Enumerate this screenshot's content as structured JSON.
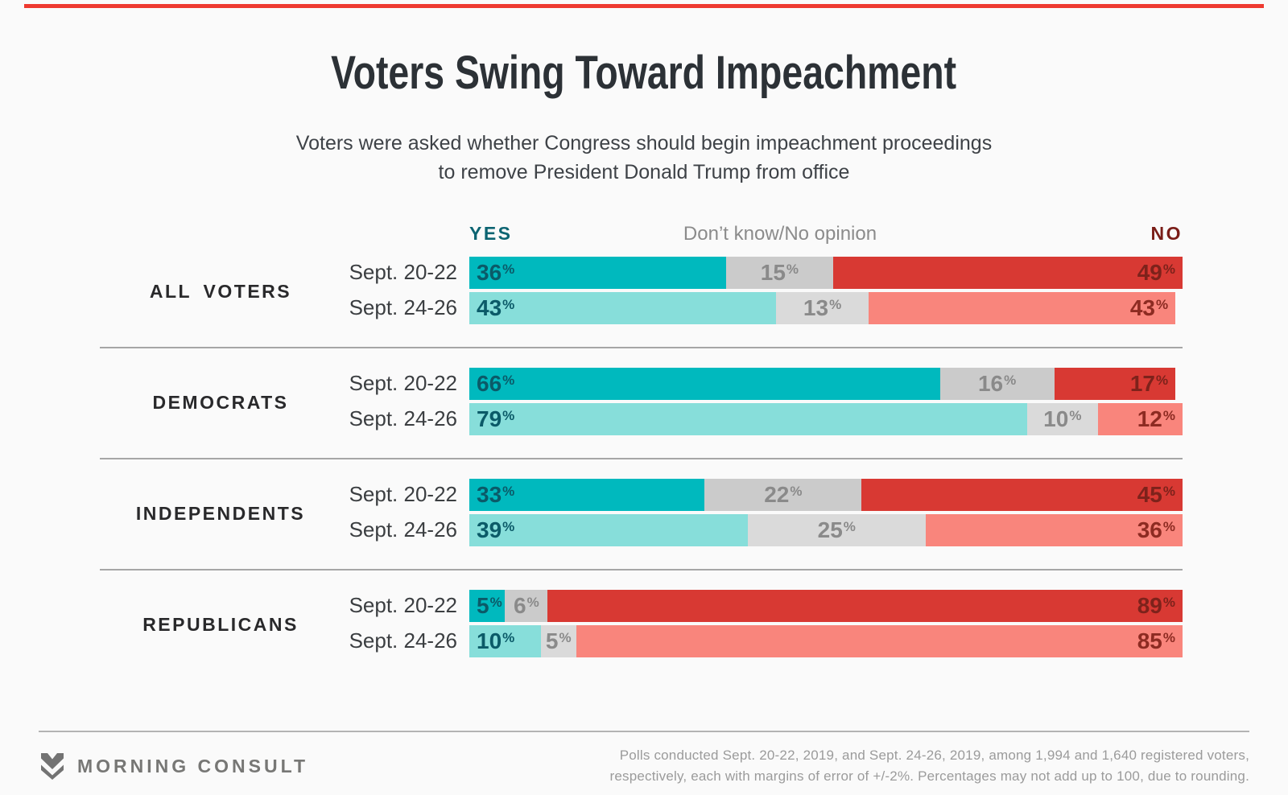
{
  "page": {
    "background": "#fafafa",
    "accent_color": "#ee3a30"
  },
  "header": {
    "title": "Voters Swing Toward Impeachment",
    "subtitle": "Voters were asked whether Congress should begin impeachment proceedings to remove President Donald Trump from office"
  },
  "legend": {
    "yes": "YES",
    "dk": "Don’t know/No opinion",
    "no": "NO"
  },
  "chart_data": {
    "type": "bar",
    "stacked": true,
    "orientation": "horizontal",
    "unit": "%",
    "x_range": [
      0,
      100
    ],
    "series_names": [
      "Yes",
      "Don't know/No opinion",
      "No"
    ],
    "categories": [
      "Sept. 20-22",
      "Sept. 24-26"
    ],
    "groups": [
      {
        "label": "ALL VOTERS",
        "rows": [
          {
            "date": "Sept. 20-22",
            "yes": 36,
            "dk": 15,
            "no": 49
          },
          {
            "date": "Sept. 24-26",
            "yes": 43,
            "dk": 13,
            "no": 43
          }
        ]
      },
      {
        "label": "DEMOCRATS",
        "rows": [
          {
            "date": "Sept. 20-22",
            "yes": 66,
            "dk": 16,
            "no": 17
          },
          {
            "date": "Sept. 24-26",
            "yes": 79,
            "dk": 10,
            "no": 12
          }
        ]
      },
      {
        "label": "INDEPENDENTS",
        "rows": [
          {
            "date": "Sept. 20-22",
            "yes": 33,
            "dk": 22,
            "no": 45
          },
          {
            "date": "Sept. 24-26",
            "yes": 39,
            "dk": 25,
            "no": 36
          }
        ]
      },
      {
        "label": "REPUBLICANS",
        "rows": [
          {
            "date": "Sept. 20-22",
            "yes": 5,
            "dk": 6,
            "no": 89
          },
          {
            "date": "Sept. 24-26",
            "yes": 10,
            "dk": 5,
            "no": 85
          }
        ]
      }
    ],
    "colors": {
      "yes": [
        "#00b9be",
        "#87deda"
      ],
      "dk": [
        "#cbcbcb",
        "#dadada"
      ],
      "no": [
        "#d83933",
        "#f9857c"
      ],
      "yes_text": "#0b5a68",
      "dk_text": "#8a8a8a",
      "no_text": [
        "#7d221b",
        "#8d2b22"
      ]
    }
  },
  "footer": {
    "logo_text": "MORNING CONSULT",
    "note_line1": "Polls conducted Sept. 20-22, 2019, and Sept. 24-26, 2019, among 1,994 and 1,640 registered voters,",
    "note_line2": "respectively, each with margins of error of +/-2%. Percentages may not add up to 100, due to rounding."
  }
}
